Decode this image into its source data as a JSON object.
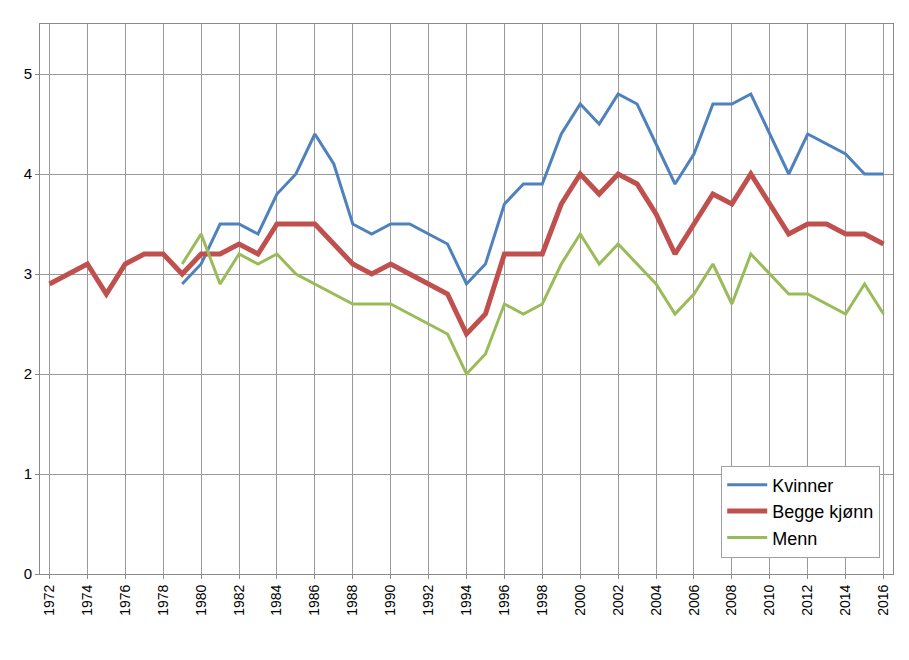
{
  "chart_data": {
    "type": "line",
    "x": [
      1972,
      1973,
      1974,
      1975,
      1976,
      1977,
      1978,
      1979,
      1980,
      1981,
      1982,
      1983,
      1984,
      1985,
      1986,
      1987,
      1988,
      1989,
      1990,
      1991,
      1992,
      1993,
      1994,
      1995,
      1996,
      1997,
      1998,
      1999,
      2000,
      2001,
      2002,
      2003,
      2004,
      2005,
      2006,
      2007,
      2008,
      2009,
      2010,
      2011,
      2012,
      2013,
      2014,
      2015,
      2016
    ],
    "series": [
      {
        "name": "Kvinner",
        "color": "#4f81bd",
        "line_style": "solid",
        "values": [
          null,
          null,
          null,
          null,
          null,
          null,
          null,
          2.9,
          3.1,
          3.5,
          3.5,
          3.4,
          3.8,
          4.0,
          4.4,
          4.1,
          3.5,
          3.4,
          3.5,
          3.5,
          3.4,
          3.3,
          2.9,
          3.1,
          3.7,
          3.9,
          3.9,
          4.4,
          4.7,
          4.5,
          4.8,
          4.7,
          4.3,
          3.9,
          4.2,
          4.7,
          4.7,
          4.8,
          4.4,
          4.0,
          4.4,
          4.3,
          4.2,
          4.0,
          4.0
        ]
      },
      {
        "name": "Begge kjønn",
        "color": "#c0504d",
        "line_style": "thick",
        "values": [
          2.9,
          3.0,
          3.1,
          2.8,
          3.1,
          3.2,
          3.2,
          3.0,
          3.2,
          3.2,
          3.3,
          3.2,
          3.5,
          3.5,
          3.5,
          3.3,
          3.1,
          3.0,
          3.1,
          3.0,
          2.9,
          2.8,
          2.4,
          2.6,
          3.2,
          3.2,
          3.2,
          3.7,
          4.0,
          3.8,
          4.0,
          3.9,
          3.6,
          3.2,
          3.5,
          3.8,
          3.7,
          4.0,
          3.7,
          3.4,
          3.5,
          3.5,
          3.4,
          3.4,
          3.3
        ]
      },
      {
        "name": "Menn",
        "color": "#9bbb59",
        "line_style": "solid",
        "values": [
          null,
          null,
          null,
          null,
          null,
          null,
          null,
          3.1,
          3.4,
          2.9,
          3.2,
          3.1,
          3.2,
          3.0,
          2.9,
          2.8,
          2.7,
          2.7,
          2.7,
          2.6,
          2.5,
          2.4,
          2.0,
          2.2,
          2.7,
          2.6,
          2.7,
          3.1,
          3.4,
          3.1,
          3.3,
          3.1,
          2.9,
          2.6,
          2.8,
          3.1,
          2.7,
          3.2,
          3.0,
          2.8,
          2.8,
          2.7,
          2.6,
          2.9,
          2.6
        ]
      }
    ],
    "xlim": [
      1971.5,
      2016.5
    ],
    "xticks": [
      1972,
      1974,
      1976,
      1978,
      1980,
      1982,
      1984,
      1986,
      1988,
      1990,
      1992,
      1994,
      1996,
      1998,
      2000,
      2002,
      2004,
      2006,
      2008,
      2010,
      2012,
      2014,
      2016
    ],
    "ylim": [
      0,
      5.5
    ],
    "yticks": [
      0,
      1,
      2,
      3,
      4,
      5
    ],
    "grid": true,
    "legend": "bottom right"
  }
}
